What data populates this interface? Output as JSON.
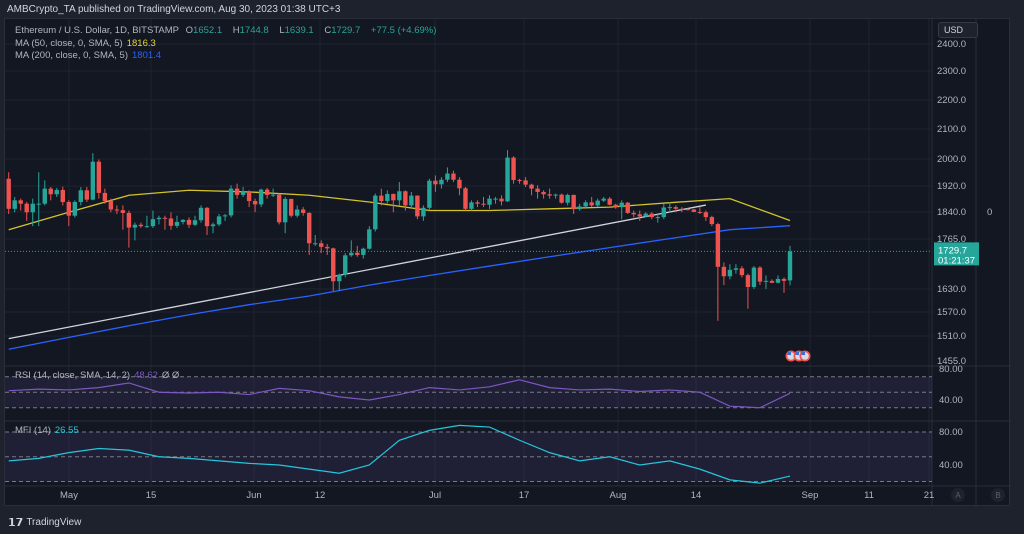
{
  "header": {
    "published": "AMBCrypto_TA published on TradingView.com, Aug 30, 2023 01:38 UTC+3"
  },
  "legend": {
    "symbol": "Ethereum / U.S. Dollar, 1D, BITSTAMP",
    "o_label": "O",
    "o": "1652.1",
    "h_label": "H",
    "h": "1744.8",
    "l_label": "L",
    "l": "1639.1",
    "c_label": "C",
    "c": "1729.7",
    "change": "+77.5 (+4.69%)",
    "ma50_label": "MA (50, close, 0, SMA, 5)",
    "ma50_value": "1816.3",
    "ma200_label": "MA (200, close, 0, SMA, 5)",
    "ma200_value": "1801.4",
    "rsi_label": "RSI (14, close, SMA, 14, 2)",
    "rsi_value": "48.62",
    "rsi_extra": "Ø Ø",
    "mfi_label": "MFI (14)",
    "mfi_value": "26.55"
  },
  "price_axis": {
    "currency": "USD",
    "ticks": [
      "2400.0",
      "2300.0",
      "2200.0",
      "2100.0",
      "2000.0",
      "1920.0",
      "1840.0",
      "1765.0",
      "1630.0",
      "1570.0",
      "1510.0",
      "1455.0"
    ],
    "last_price": "1729.7",
    "countdown": "01:21:37",
    "extra_col": "0"
  },
  "osc_axis": {
    "rsi_ticks": [
      "80.00",
      "40.00"
    ],
    "mfi_ticks": [
      "80.00",
      "40.00"
    ]
  },
  "time_axis": {
    "labels": [
      "May",
      "15",
      "Jun",
      "12",
      "Jul",
      "17",
      "Aug",
      "14",
      "Sep",
      "11",
      "21"
    ],
    "buttons": [
      "A",
      "B"
    ]
  },
  "footer": {
    "brand": "TradingView"
  },
  "colors": {
    "up": "#26a69a",
    "down": "#ef5350",
    "ma50": "#d4c22a",
    "ma200": "#2962ff",
    "rsi": "#7e57c2",
    "mfi": "#26c6da",
    "bg": "#131722"
  },
  "chart_data": {
    "type": "candlestick",
    "first_date": "2023-04-21",
    "last_date": "2023-08-29",
    "scale": "log",
    "candles": [
      [
        1940,
        1960,
        1835,
        1850
      ],
      [
        1850,
        1885,
        1840,
        1875
      ],
      [
        1875,
        1880,
        1845,
        1865
      ],
      [
        1865,
        1870,
        1815,
        1840
      ],
      [
        1840,
        1880,
        1800,
        1865
      ],
      [
        1865,
        1960,
        1800,
        1865
      ],
      [
        1865,
        1935,
        1860,
        1910
      ],
      [
        1910,
        1915,
        1875,
        1893
      ],
      [
        1893,
        1912,
        1885,
        1906
      ],
      [
        1906,
        1916,
        1860,
        1870
      ],
      [
        1870,
        1875,
        1800,
        1830
      ],
      [
        1830,
        1875,
        1825,
        1870
      ],
      [
        1870,
        1915,
        1860,
        1905
      ],
      [
        1905,
        1915,
        1870,
        1877
      ],
      [
        1877,
        2020,
        1875,
        1993
      ],
      [
        1993,
        2000,
        1880,
        1897
      ],
      [
        1897,
        1910,
        1865,
        1873
      ],
      [
        1873,
        1880,
        1840,
        1848
      ],
      [
        1848,
        1860,
        1835,
        1846
      ],
      [
        1846,
        1860,
        1790,
        1838
      ],
      [
        1838,
        1845,
        1740,
        1796
      ],
      [
        1796,
        1810,
        1760,
        1804
      ],
      [
        1804,
        1810,
        1795,
        1800
      ],
      [
        1800,
        1830,
        1795,
        1800
      ],
      [
        1800,
        1845,
        1795,
        1820
      ],
      [
        1820,
        1830,
        1805,
        1824
      ],
      [
        1824,
        1830,
        1790,
        1822
      ],
      [
        1822,
        1840,
        1790,
        1801
      ],
      [
        1801,
        1830,
        1795,
        1812
      ],
      [
        1812,
        1820,
        1805,
        1818
      ],
      [
        1818,
        1825,
        1795,
        1804
      ],
      [
        1804,
        1830,
        1800,
        1817
      ],
      [
        1817,
        1860,
        1810,
        1853
      ],
      [
        1853,
        1855,
        1775,
        1800
      ],
      [
        1800,
        1810,
        1780,
        1805
      ],
      [
        1805,
        1835,
        1800,
        1828
      ],
      [
        1828,
        1835,
        1815,
        1831
      ],
      [
        1831,
        1920,
        1825,
        1910
      ],
      [
        1910,
        1925,
        1880,
        1891
      ],
      [
        1891,
        1915,
        1885,
        1902
      ],
      [
        1902,
        1905,
        1855,
        1873
      ],
      [
        1873,
        1880,
        1840,
        1863
      ],
      [
        1863,
        1910,
        1855,
        1907
      ],
      [
        1907,
        1912,
        1880,
        1891
      ],
      [
        1891,
        1910,
        1885,
        1892
      ],
      [
        1892,
        1895,
        1805,
        1811
      ],
      [
        1811,
        1885,
        1780,
        1879
      ],
      [
        1879,
        1880,
        1825,
        1830
      ],
      [
        1830,
        1860,
        1825,
        1848
      ],
      [
        1848,
        1855,
        1830,
        1838
      ],
      [
        1838,
        1840,
        1720,
        1752
      ],
      [
        1752,
        1775,
        1745,
        1752
      ],
      [
        1752,
        1760,
        1725,
        1742
      ],
      [
        1742,
        1750,
        1720,
        1738
      ],
      [
        1738,
        1740,
        1625,
        1650
      ],
      [
        1650,
        1670,
        1625,
        1667
      ],
      [
        1667,
        1725,
        1660,
        1719
      ],
      [
        1719,
        1760,
        1715,
        1726
      ],
      [
        1726,
        1745,
        1715,
        1720
      ],
      [
        1720,
        1740,
        1710,
        1737
      ],
      [
        1737,
        1800,
        1735,
        1791
      ],
      [
        1791,
        1895,
        1785,
        1889
      ],
      [
        1889,
        1910,
        1860,
        1873
      ],
      [
        1873,
        1905,
        1865,
        1894
      ],
      [
        1894,
        1895,
        1840,
        1875
      ],
      [
        1875,
        1930,
        1860,
        1902
      ],
      [
        1902,
        1905,
        1845,
        1860
      ],
      [
        1860,
        1900,
        1855,
        1889
      ],
      [
        1889,
        1890,
        1820,
        1828
      ],
      [
        1828,
        1860,
        1815,
        1853
      ],
      [
        1853,
        1940,
        1845,
        1934
      ],
      [
        1934,
        1950,
        1900,
        1923
      ],
      [
        1923,
        1945,
        1910,
        1937
      ],
      [
        1937,
        1975,
        1930,
        1956
      ],
      [
        1956,
        1965,
        1930,
        1937
      ],
      [
        1937,
        1945,
        1890,
        1911
      ],
      [
        1911,
        1915,
        1845,
        1850
      ],
      [
        1850,
        1875,
        1845,
        1869
      ],
      [
        1869,
        1875,
        1855,
        1865
      ],
      [
        1865,
        1885,
        1855,
        1862
      ],
      [
        1862,
        1890,
        1850,
        1880
      ],
      [
        1880,
        1885,
        1865,
        1880
      ],
      [
        1880,
        1890,
        1860,
        1872
      ],
      [
        1872,
        2030,
        1870,
        2006
      ],
      [
        2006,
        2010,
        1925,
        1936
      ],
      [
        1936,
        1940,
        1925,
        1935
      ],
      [
        1935,
        1945,
        1915,
        1922
      ],
      [
        1922,
        1925,
        1890,
        1910
      ],
      [
        1910,
        1920,
        1880,
        1900
      ],
      [
        1900,
        1905,
        1880,
        1893
      ],
      [
        1893,
        1910,
        1880,
        1889
      ],
      [
        1889,
        1895,
        1880,
        1892
      ],
      [
        1892,
        1895,
        1865,
        1868
      ],
      [
        1868,
        1895,
        1860,
        1891
      ],
      [
        1891,
        1892,
        1835,
        1849
      ],
      [
        1849,
        1865,
        1845,
        1857
      ],
      [
        1857,
        1875,
        1850,
        1869
      ],
      [
        1869,
        1885,
        1855,
        1860
      ],
      [
        1860,
        1880,
        1855,
        1874
      ],
      [
        1874,
        1885,
        1870,
        1880
      ],
      [
        1880,
        1885,
        1860,
        1862
      ],
      [
        1862,
        1865,
        1850,
        1855
      ],
      [
        1855,
        1875,
        1820,
        1868
      ],
      [
        1868,
        1870,
        1835,
        1838
      ],
      [
        1838,
        1845,
        1825,
        1834
      ],
      [
        1834,
        1845,
        1815,
        1828
      ],
      [
        1828,
        1840,
        1825,
        1836
      ],
      [
        1836,
        1840,
        1820,
        1826
      ],
      [
        1826,
        1835,
        1810,
        1826
      ],
      [
        1826,
        1865,
        1820,
        1854
      ],
      [
        1854,
        1870,
        1840,
        1855
      ],
      [
        1855,
        1860,
        1840,
        1850
      ],
      [
        1850,
        1855,
        1840,
        1849
      ],
      [
        1849,
        1852,
        1845,
        1848
      ],
      [
        1848,
        1850,
        1840,
        1841
      ],
      [
        1841,
        1855,
        1835,
        1840
      ],
      [
        1840,
        1845,
        1815,
        1826
      ],
      [
        1826,
        1830,
        1800,
        1806
      ],
      [
        1806,
        1810,
        1550,
        1688
      ],
      [
        1688,
        1700,
        1640,
        1663
      ],
      [
        1663,
        1695,
        1655,
        1680
      ],
      [
        1680,
        1695,
        1670,
        1684
      ],
      [
        1684,
        1690,
        1660,
        1666
      ],
      [
        1666,
        1670,
        1580,
        1635
      ],
      [
        1635,
        1690,
        1630,
        1686
      ],
      [
        1686,
        1690,
        1640,
        1649
      ],
      [
        1649,
        1665,
        1630,
        1651
      ],
      [
        1651,
        1655,
        1645,
        1646
      ],
      [
        1646,
        1665,
        1645,
        1656
      ],
      [
        1656,
        1660,
        1620,
        1651
      ],
      [
        1652.1,
        1744.8,
        1639.1,
        1729.7
      ]
    ],
    "ma50_every_10_days": [
      1790,
      1840,
      1890,
      1905,
      1900,
      1890,
      1870,
      1845,
      1845,
      1850,
      1855,
      1868,
      1880,
      1816.3
    ],
    "ma200_every_10_days": [
      1482,
      1510,
      1538,
      1565,
      1590,
      1612,
      1640,
      1665,
      1690,
      1715,
      1740,
      1765,
      1790,
      1801.4
    ],
    "trendline": [
      [
        "2023-04-21",
        1507
      ],
      [
        "2023-08-15",
        1861
      ]
    ],
    "rsi_every_5_days": [
      52,
      54,
      53,
      56,
      62,
      50,
      49,
      50,
      47,
      55,
      52,
      44,
      40,
      47,
      56,
      53,
      57,
      66,
      56,
      53,
      54,
      51,
      53,
      50,
      32,
      30,
      48.62
    ],
    "mfi_every_5_days": [
      45,
      48,
      55,
      60,
      58,
      50,
      48,
      45,
      42,
      40,
      35,
      30,
      40,
      70,
      82,
      88,
      86,
      70,
      55,
      45,
      50,
      40,
      45,
      35,
      22,
      18,
      26.55
    ]
  }
}
